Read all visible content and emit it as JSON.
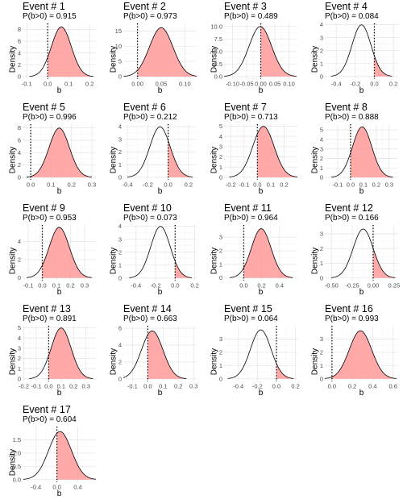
{
  "figure": {
    "x_axis_label": "b",
    "y_axis_label": "Density",
    "colors": {
      "fill": "#ff9a9a",
      "fill_opacity": 0.85,
      "curve": "#000000",
      "panel_bg": "#ffffff",
      "grid_major": "#e6e6e6",
      "grid_minor": "#f3f3f3",
      "tick_text": "#4d4d4d",
      "ref_line": "#000000"
    }
  },
  "chart_data": [
    {
      "type": "area",
      "title": "Event # 1",
      "subtitle": "P(b>0) = 0.915",
      "prob": 0.915,
      "mean": 0.065,
      "sd": 0.0475,
      "xlim": [
        -0.12,
        0.23
      ],
      "ylim": [
        -0.4,
        9.0
      ],
      "xticks": [
        -0.1,
        0.0,
        0.1,
        0.2
      ],
      "xtick_labels": [
        "-0.1",
        "0.0",
        "0.1",
        "0.2"
      ],
      "yticks": [
        0,
        2,
        4,
        6,
        8
      ],
      "ytick_labels": [
        "0",
        "2",
        "4",
        "6",
        "8"
      ],
      "xlabel": "b",
      "ylabel": "Density",
      "shaded_region": "b > 0",
      "vline": 0
    },
    {
      "type": "area",
      "title": "Event # 2",
      "subtitle": "P(b>0) = 0.973",
      "prob": 0.973,
      "mean": 0.05,
      "sd": 0.0248,
      "xlim": [
        -0.03,
        0.125
      ],
      "ylim": [
        -0.8,
        17.5
      ],
      "xticks": [
        0.0,
        0.05,
        0.1
      ],
      "xtick_labels": [
        "0.00",
        "0.05",
        "0.10"
      ],
      "yticks": [
        0,
        5,
        10,
        15
      ],
      "ytick_labels": [
        "0",
        "5",
        "10",
        "15"
      ],
      "xlabel": "b",
      "ylabel": "Density",
      "shaded_region": "b > 0",
      "vline": 0
    },
    {
      "type": "area",
      "title": "Event # 3",
      "subtitle": "P(b>0) = 0.489",
      "prob": 0.489,
      "mean": -0.0015,
      "sd": 0.04,
      "xlim": [
        -0.13,
        0.13
      ],
      "ylim": [
        -0.5,
        10.6
      ],
      "xticks": [
        -0.1,
        -0.05,
        0.0,
        0.05,
        0.1
      ],
      "xtick_labels": [
        "-0.10",
        "-0.05",
        "0.00",
        "0.05",
        "0.10"
      ],
      "yticks": [
        0.0,
        2.5,
        5.0,
        7.5,
        10.0
      ],
      "ytick_labels": [
        "0.0",
        "2.5",
        "5.0",
        "7.5",
        "10.0"
      ],
      "xlabel": "b",
      "ylabel": "Density",
      "shaded_region": "b > 0",
      "vline": 0
    },
    {
      "type": "area",
      "title": "Event # 4",
      "subtitle": "P(b>0) = 0.084",
      "prob": 0.084,
      "mean": -0.135,
      "sd": 0.1,
      "xlim": [
        -0.52,
        0.25
      ],
      "ylim": [
        -0.2,
        4.1
      ],
      "xticks": [
        -0.4,
        -0.2,
        0.0,
        0.2
      ],
      "xtick_labels": [
        "-0.4",
        "-0.2",
        "0.0",
        "0.2"
      ],
      "yticks": [
        0,
        1,
        2,
        3,
        4
      ],
      "ytick_labels": [
        "0",
        "1",
        "2",
        "3",
        "4"
      ],
      "xlabel": "b",
      "ylabel": "Density",
      "shaded_region": "b > 0",
      "vline": 0
    },
    {
      "type": "area",
      "title": "Event # 5",
      "subtitle": "P(b>0) = 0.996",
      "prob": 0.996,
      "mean": 0.14,
      "sd": 0.05,
      "xlim": [
        -0.04,
        0.32
      ],
      "ylim": [
        -0.4,
        8.6
      ],
      "xticks": [
        0.0,
        0.1,
        0.2,
        0.3
      ],
      "xtick_labels": [
        "0.0",
        "0.1",
        "0.2",
        "0.3"
      ],
      "yticks": [
        0,
        2,
        4,
        6,
        8
      ],
      "ytick_labels": [
        "0",
        "2",
        "4",
        "6",
        "8"
      ],
      "xlabel": "b",
      "ylabel": "Density",
      "shaded_region": "b > 0",
      "vline": 0
    },
    {
      "type": "area",
      "title": "Event # 6",
      "subtitle": "P(b>0) = 0.212",
      "prob": 0.212,
      "mean": -0.08,
      "sd": 0.1,
      "xlim": [
        -0.44,
        0.28
      ],
      "ylim": [
        -0.2,
        4.2
      ],
      "xticks": [
        -0.4,
        -0.2,
        0.0,
        0.2
      ],
      "xtick_labels": [
        "-0.4",
        "-0.2",
        "0.0",
        "0.2"
      ],
      "yticks": [
        0,
        1,
        2,
        3,
        4
      ],
      "ytick_labels": [
        "0",
        "1",
        "2",
        "3",
        "4"
      ],
      "xlabel": "b",
      "ylabel": "Density",
      "shaded_region": "b > 0",
      "vline": 0
    },
    {
      "type": "area",
      "title": "Event # 7",
      "subtitle": "P(b>0) = 0.713",
      "prob": 0.713,
      "mean": 0.045,
      "sd": 0.08,
      "xlim": [
        -0.25,
        0.3
      ],
      "ylim": [
        -0.25,
        5.2
      ],
      "xticks": [
        -0.2,
        -0.1,
        0.0,
        0.1,
        0.2
      ],
      "xtick_labels": [
        "-0.2",
        "-0.1",
        "0.0",
        "0.1",
        "0.2"
      ],
      "yticks": [
        0,
        1,
        2,
        3,
        4,
        5
      ],
      "ytick_labels": [
        "0",
        "1",
        "2",
        "3",
        "4",
        "5"
      ],
      "xlabel": "b",
      "ylabel": "Density",
      "shaded_region": "b > 0",
      "vline": 0
    },
    {
      "type": "area",
      "title": "Event # 8",
      "subtitle": "P(b>0) = 0.888",
      "prob": 0.888,
      "mean": 0.09,
      "sd": 0.075,
      "xlim": [
        -0.2,
        0.37
      ],
      "ylim": [
        -0.25,
        5.6
      ],
      "xticks": [
        -0.1,
        0.0,
        0.1,
        0.2,
        0.3
      ],
      "xtick_labels": [
        "-0.1",
        "0.0",
        "0.1",
        "0.2",
        "0.3"
      ],
      "yticks": [
        0,
        1,
        2,
        3,
        4,
        5
      ],
      "ytick_labels": [
        "0",
        "1",
        "2",
        "3",
        "4",
        "5"
      ],
      "xlabel": "b",
      "ylabel": "Density",
      "shaded_region": "b > 0",
      "vline": 0
    },
    {
      "type": "area",
      "title": "Event # 9",
      "subtitle": "P(b>0) = 0.953",
      "prob": 0.953,
      "mean": 0.12,
      "sd": 0.072,
      "xlim": [
        -0.14,
        0.38
      ],
      "ylim": [
        -0.3,
        5.8
      ],
      "xticks": [
        -0.1,
        0.0,
        0.1,
        0.2,
        0.3
      ],
      "xtick_labels": [
        "-0.1",
        "0.0",
        "0.1",
        "0.2",
        "0.3"
      ],
      "yticks": [
        0,
        2,
        4
      ],
      "ytick_labels": [
        "0",
        "2",
        "4"
      ],
      "xlabel": "b",
      "ylabel": "Density",
      "shaded_region": "b > 0",
      "vline": 0
    },
    {
      "type": "area",
      "title": "Event # 10",
      "subtitle": "P(b>0) = 0.073",
      "prob": 0.073,
      "mean": -0.15,
      "sd": 0.1,
      "xlim": [
        -0.53,
        0.22
      ],
      "ylim": [
        -0.2,
        4.1
      ],
      "xticks": [
        -0.4,
        -0.2,
        0.0,
        0.2
      ],
      "xtick_labels": [
        "-0.4",
        "-0.2",
        "0.0",
        "0.2"
      ],
      "yticks": [
        0,
        1,
        2,
        3,
        4
      ],
      "ytick_labels": [
        "0",
        "1",
        "2",
        "3",
        "4"
      ],
      "xlabel": "b",
      "ylabel": "Density",
      "shaded_region": "b > 0",
      "vline": 0
    },
    {
      "type": "area",
      "title": "Event # 11",
      "subtitle": "P(b>0) = 0.964",
      "prob": 0.964,
      "mean": 0.195,
      "sd": 0.11,
      "xlim": [
        -0.22,
        0.6
      ],
      "ylim": [
        -0.2,
        3.9
      ],
      "xticks": [
        0.0,
        0.2,
        0.4
      ],
      "xtick_labels": [
        "0.0",
        "0.2",
        "0.4"
      ],
      "yticks": [
        0,
        1,
        2,
        3
      ],
      "ytick_labels": [
        "0",
        "1",
        "2",
        "3"
      ],
      "xlabel": "b",
      "ylabel": "Density",
      "shaded_region": "b > 0",
      "vline": 0
    },
    {
      "type": "area",
      "title": "Event # 12",
      "subtitle": "P(b>0) = 0.166",
      "prob": 0.166,
      "mean": -0.12,
      "sd": 0.12,
      "xlim": [
        -0.58,
        0.3
      ],
      "ylim": [
        -0.18,
        3.6
      ],
      "xticks": [
        -0.5,
        -0.25,
        0.0,
        0.25
      ],
      "xtick_labels": [
        "-0.50",
        "-0.25",
        "0.00",
        "0.25"
      ],
      "yticks": [
        0,
        1,
        2,
        3
      ],
      "ytick_labels": [
        "0",
        "1",
        "2",
        "3"
      ],
      "xlabel": "b",
      "ylabel": "Density",
      "shaded_region": "b > 0",
      "vline": 0
    },
    {
      "type": "area",
      "title": "Event # 13",
      "subtitle": "P(b>0) = 0.891",
      "prob": 0.891,
      "mean": 0.1,
      "sd": 0.08,
      "xlim": [
        -0.21,
        0.38
      ],
      "ylim": [
        -0.25,
        5.2
      ],
      "xticks": [
        -0.2,
        -0.1,
        0.0,
        0.1,
        0.2,
        0.3
      ],
      "xtick_labels": [
        "-0.2",
        "-0.1",
        "0.0",
        "0.1",
        "0.2",
        "0.3"
      ],
      "yticks": [
        0,
        1,
        2,
        3,
        4,
        5
      ],
      "ytick_labels": [
        "0",
        "1",
        "2",
        "3",
        "4",
        "5"
      ],
      "xlabel": "b",
      "ylabel": "Density",
      "shaded_region": "b > 0",
      "vline": 0
    },
    {
      "type": "area",
      "title": "Event # 14",
      "subtitle": "P(b>0) = 0.663",
      "prob": 0.663,
      "mean": 0.029,
      "sd": 0.07,
      "xlim": [
        -0.16,
        0.32
      ],
      "ylim": [
        -0.3,
        6.3
      ],
      "xticks": [
        -0.1,
        0.0,
        0.1,
        0.2,
        0.3
      ],
      "xtick_labels": [
        "-0.1",
        "0.0",
        "0.1",
        "0.2",
        "0.3"
      ],
      "yticks": [
        0,
        2,
        4,
        6
      ],
      "ytick_labels": [
        "0",
        "2",
        "4",
        "6"
      ],
      "xlabel": "b",
      "ylabel": "Density",
      "shaded_region": "b > 0",
      "vline": 0
    },
    {
      "type": "area",
      "title": "Event # 15",
      "subtitle": "P(b>0) = 0.064",
      "prob": 0.064,
      "mean": -0.165,
      "sd": 0.108,
      "xlim": [
        -0.55,
        0.22
      ],
      "ylim": [
        -0.2,
        4.0
      ],
      "xticks": [
        -0.4,
        -0.2,
        0.0,
        0.2
      ],
      "xtick_labels": [
        "-0.4",
        "-0.2",
        "0.0",
        "0.2"
      ],
      "yticks": [
        0,
        1,
        2,
        3
      ],
      "ytick_labels": [
        "0",
        "1",
        "2",
        "3"
      ],
      "xlabel": "b",
      "ylabel": "Density",
      "shaded_region": "b > 0",
      "vline": 0
    },
    {
      "type": "area",
      "title": "Event # 16",
      "subtitle": "P(b>0) = 0.993",
      "prob": 0.993,
      "mean": 0.28,
      "sd": 0.11,
      "xlim": [
        -0.07,
        0.65
      ],
      "ylim": [
        -0.2,
        4.0
      ],
      "xticks": [
        0.0,
        0.2,
        0.4,
        0.6
      ],
      "xtick_labels": [
        "0.0",
        "0.2",
        "0.4",
        "0.6"
      ],
      "yticks": [
        0,
        1,
        2,
        3
      ],
      "ytick_labels": [
        "0",
        "1",
        "2",
        "3"
      ],
      "xlabel": "b",
      "ylabel": "Density",
      "shaded_region": "b > 0",
      "vline": 0
    },
    {
      "type": "area",
      "title": "Event # 17",
      "subtitle": "P(b>0) = 0.604",
      "prob": 0.604,
      "mean": 0.06,
      "sd": 0.22,
      "xlim": [
        -0.66,
        0.75
      ],
      "ylim": [
        -0.1,
        2.0
      ],
      "xticks": [
        -0.4,
        0.0,
        0.4
      ],
      "xtick_labels": [
        "-0.4",
        "0.0",
        "0.4"
      ],
      "yticks": [
        0.0,
        0.5,
        1.0,
        1.5
      ],
      "ytick_labels": [
        "0.0",
        "0.5",
        "1.0",
        "1.5"
      ],
      "xlabel": "b",
      "ylabel": "Density",
      "shaded_region": "b > 0",
      "vline": 0
    }
  ]
}
